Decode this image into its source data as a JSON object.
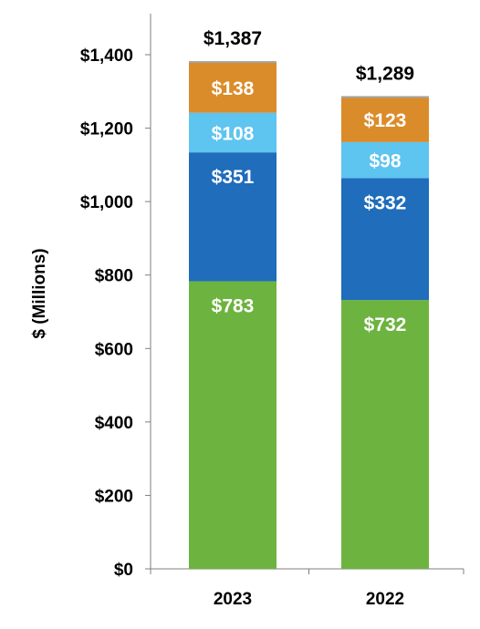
{
  "chart_data": {
    "type": "bar",
    "stacked": true,
    "categories": [
      "2023",
      "2022"
    ],
    "series": [
      {
        "values": [
          783,
          732
        ],
        "labels": [
          "$783",
          "$732"
        ],
        "color": "#6db33f"
      },
      {
        "values": [
          351,
          332
        ],
        "labels": [
          "$351",
          "$332"
        ],
        "color": "#1f6dbb"
      },
      {
        "values": [
          108,
          98
        ],
        "labels": [
          "$108",
          "$98"
        ],
        "color": "#5ec4f0"
      },
      {
        "values": [
          138,
          123
        ],
        "labels": [
          "$138",
          "$123"
        ],
        "color": "#db8c2a"
      }
    ],
    "totals": [
      1387,
      1289
    ],
    "total_labels": [
      "$1,387",
      "$1,289"
    ],
    "title": "",
    "xlabel": "",
    "ylabel": "$ (Millions)",
    "ylim": [
      0,
      1400
    ],
    "yticks": [
      0,
      200,
      400,
      600,
      800,
      1000,
      1200,
      1400
    ],
    "ytick_labels": [
      "$0",
      "$200",
      "$400",
      "$600",
      "$800",
      "$1,000",
      "$1,200",
      "$1,400"
    ],
    "grid": false,
    "legend": "none"
  }
}
